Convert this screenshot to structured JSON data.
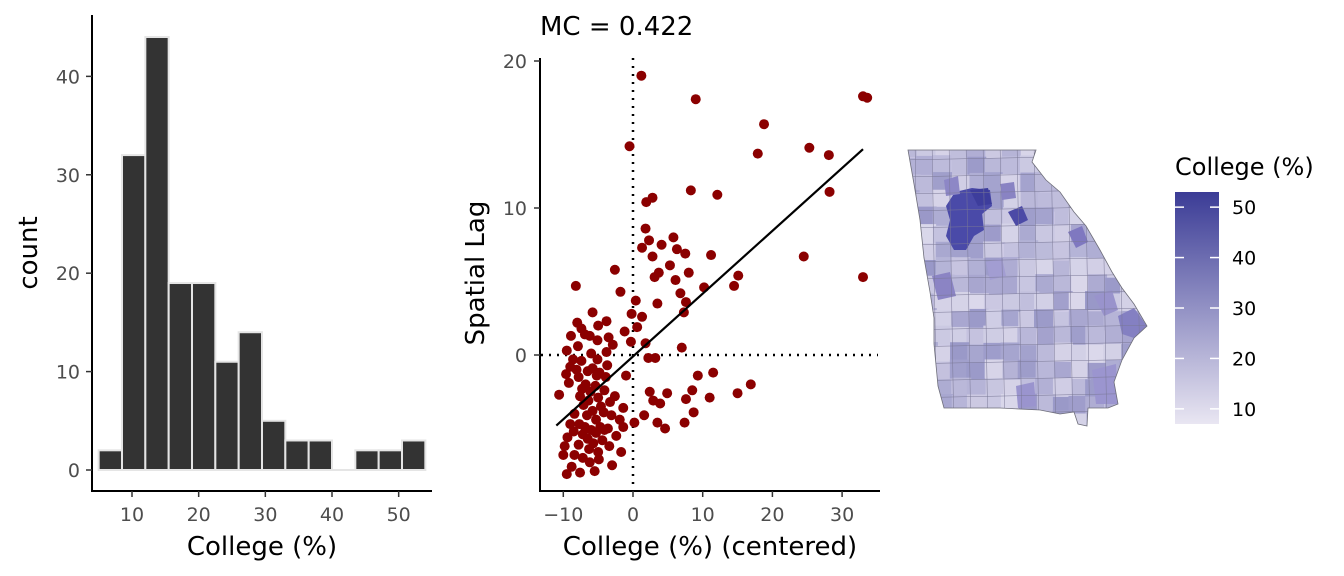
{
  "chart_data": [
    {
      "type": "bar",
      "subtype": "histogram",
      "title": "",
      "xlabel": "College (%)",
      "ylabel": "count",
      "xlim": [
        4,
        55
      ],
      "ylim": [
        0,
        46
      ],
      "x_ticks": [
        10,
        20,
        30,
        40,
        50
      ],
      "y_ticks": [
        0,
        10,
        20,
        30,
        40
      ],
      "bin_width": 3.5,
      "bins": [
        {
          "x0": 5.0,
          "x1": 8.5,
          "count": 2
        },
        {
          "x0": 8.5,
          "x1": 12.0,
          "count": 32
        },
        {
          "x0": 12.0,
          "x1": 15.5,
          "count": 44
        },
        {
          "x0": 15.5,
          "x1": 19.0,
          "count": 19
        },
        {
          "x0": 19.0,
          "x1": 22.5,
          "count": 19
        },
        {
          "x0": 22.5,
          "x1": 26.0,
          "count": 11
        },
        {
          "x0": 26.0,
          "x1": 29.5,
          "count": 14
        },
        {
          "x0": 29.5,
          "x1": 33.0,
          "count": 5
        },
        {
          "x0": 33.0,
          "x1": 36.5,
          "count": 3
        },
        {
          "x0": 36.5,
          "x1": 40.0,
          "count": 3
        },
        {
          "x0": 40.0,
          "x1": 43.5,
          "count": 0
        },
        {
          "x0": 43.5,
          "x1": 47.0,
          "count": 2
        },
        {
          "x0": 47.0,
          "x1": 50.5,
          "count": 2
        },
        {
          "x0": 50.5,
          "x1": 54.0,
          "count": 3
        }
      ],
      "bar_color": "#333333",
      "bar_edge_color": "#e5e5e5",
      "grid": false
    },
    {
      "type": "scatter",
      "title": "MC = 0.422",
      "xlabel": "College (%) (centered)",
      "ylabel": "Spatial Lag",
      "xlim": [
        -13.5,
        35.5
      ],
      "ylim": [
        -9.2,
        21
      ],
      "x_ticks": [
        -10,
        0,
        10,
        20,
        30
      ],
      "y_ticks": [
        0,
        10,
        20
      ],
      "point_color": "#8b0000",
      "reference_lines": {
        "x": 0,
        "y": 0,
        "style": "dotted"
      },
      "fit_line": {
        "x": [
          -11,
          33
        ],
        "y": [
          -4.8,
          14.0
        ]
      },
      "points": [
        [
          1.2,
          19.0
        ],
        [
          9.0,
          17.4
        ],
        [
          33.0,
          17.6
        ],
        [
          33.6,
          17.5
        ],
        [
          -0.5,
          14.2
        ],
        [
          18.8,
          15.7
        ],
        [
          25.3,
          14.1
        ],
        [
          28.1,
          13.6
        ],
        [
          17.9,
          13.7
        ],
        [
          8.3,
          11.2
        ],
        [
          12.1,
          10.9
        ],
        [
          28.2,
          11.1
        ],
        [
          2.8,
          10.7
        ],
        [
          1.9,
          10.4
        ],
        [
          1.8,
          8.6
        ],
        [
          2.3,
          7.8
        ],
        [
          5.8,
          8.0
        ],
        [
          4.1,
          7.5
        ],
        [
          7.5,
          6.9
        ],
        [
          1.3,
          7.3
        ],
        [
          6.3,
          7.2
        ],
        [
          11.2,
          6.8
        ],
        [
          2.8,
          6.7
        ],
        [
          5.3,
          6.1
        ],
        [
          24.5,
          6.7
        ],
        [
          8.0,
          5.6
        ],
        [
          15.1,
          5.4
        ],
        [
          3.7,
          5.6
        ],
        [
          3.1,
          5.3
        ],
        [
          6.1,
          5.1
        ],
        [
          -2.6,
          5.8
        ],
        [
          -8.2,
          4.7
        ],
        [
          14.5,
          4.7
        ],
        [
          10.2,
          4.6
        ],
        [
          -1.8,
          4.3
        ],
        [
          6.8,
          4.2
        ],
        [
          33.0,
          5.3
        ],
        [
          7.6,
          3.6
        ],
        [
          0.4,
          3.7
        ],
        [
          3.5,
          3.5
        ],
        [
          -5.8,
          2.9
        ],
        [
          7.3,
          2.9
        ],
        [
          -0.2,
          2.8
        ],
        [
          1.3,
          2.6
        ],
        [
          -3.8,
          2.3
        ],
        [
          -8.0,
          2.2
        ],
        [
          -5.0,
          2.0
        ],
        [
          0.6,
          1.9
        ],
        [
          -7.4,
          1.8
        ],
        [
          -1.2,
          1.6
        ],
        [
          -6.9,
          1.4
        ],
        [
          -8.9,
          1.3
        ],
        [
          -6.2,
          1.3
        ],
        [
          -3.5,
          1.2
        ],
        [
          -5.1,
          1.0
        ],
        [
          -0.3,
          0.9
        ],
        [
          1.8,
          0.8
        ],
        [
          -2.9,
          0.7
        ],
        [
          -7.9,
          0.6
        ],
        [
          -9.5,
          0.3
        ],
        [
          -3.8,
          0.2
        ],
        [
          7.0,
          0.5
        ],
        [
          -6.0,
          0.1
        ],
        [
          -8.6,
          -0.3
        ],
        [
          -5.1,
          -0.3
        ],
        [
          -7.4,
          -0.4
        ],
        [
          2.2,
          -0.2
        ],
        [
          3.2,
          -0.2
        ],
        [
          -9.0,
          -0.8
        ],
        [
          -3.7,
          -0.7
        ],
        [
          -5.8,
          -0.9
        ],
        [
          -8.1,
          -1.0
        ],
        [
          -6.5,
          -1.1
        ],
        [
          -4.8,
          -1.2
        ],
        [
          -9.6,
          -1.3
        ],
        [
          -5.2,
          -1.4
        ],
        [
          -3.9,
          -1.5
        ],
        [
          -1.0,
          -1.4
        ],
        [
          -7.8,
          -1.5
        ],
        [
          11.5,
          -1.2
        ],
        [
          9.3,
          -1.4
        ],
        [
          -9.2,
          -1.9
        ],
        [
          -6.8,
          -2.0
        ],
        [
          -5.4,
          -2.1
        ],
        [
          -7.3,
          -2.3
        ],
        [
          4.9,
          -2.6
        ],
        [
          16.9,
          -2.0
        ],
        [
          -4.1,
          -2.4
        ],
        [
          -10.6,
          -2.7
        ],
        [
          -6.1,
          -2.5
        ],
        [
          2.4,
          -2.5
        ],
        [
          8.5,
          -2.4
        ],
        [
          -7.6,
          -2.8
        ],
        [
          -5.0,
          -2.9
        ],
        [
          -2.6,
          -2.8
        ],
        [
          15.0,
          -2.6
        ],
        [
          -6.4,
          -3.1
        ],
        [
          7.6,
          -3.0
        ],
        [
          2.9,
          -3.1
        ],
        [
          -3.3,
          -3.2
        ],
        [
          3.9,
          -3.3
        ],
        [
          11.0,
          -2.9
        ],
        [
          -7.1,
          -3.4
        ],
        [
          -4.6,
          -3.5
        ],
        [
          -1.4,
          -3.6
        ],
        [
          -5.8,
          -3.8
        ],
        [
          -4.2,
          -3.9
        ],
        [
          8.7,
          -3.9
        ],
        [
          -8.4,
          -4.0
        ],
        [
          -6.6,
          -4.1
        ],
        [
          -3.1,
          -4.1
        ],
        [
          1.6,
          -4.1
        ],
        [
          -1.9,
          -4.4
        ],
        [
          0.2,
          -4.6
        ],
        [
          -5.3,
          -4.4
        ],
        [
          3.5,
          -4.6
        ],
        [
          7.4,
          -4.6
        ],
        [
          -7.7,
          -4.7
        ],
        [
          -9.0,
          -4.7
        ],
        [
          -4.7,
          -4.9
        ],
        [
          -6.9,
          -4.9
        ],
        [
          -3.6,
          -5.0
        ],
        [
          -1.4,
          -4.9
        ],
        [
          -6.0,
          -5.1
        ],
        [
          4.6,
          -5.0
        ],
        [
          -4.1,
          -5.1
        ],
        [
          -8.5,
          -5.2
        ],
        [
          -5.3,
          -5.3
        ],
        [
          -7.2,
          -5.4
        ],
        [
          -2.4,
          -5.5
        ],
        [
          -9.4,
          -5.6
        ],
        [
          -6.5,
          -5.7
        ],
        [
          -4.4,
          -5.8
        ],
        [
          -5.7,
          -6.0
        ],
        [
          -7.8,
          -6.1
        ],
        [
          -3.4,
          -6.2
        ],
        [
          -9.8,
          -6.2
        ],
        [
          -6.3,
          -6.4
        ],
        [
          -5.0,
          -6.6
        ],
        [
          -1.7,
          -6.6
        ],
        [
          -8.4,
          -6.8
        ],
        [
          -10.0,
          -6.8
        ],
        [
          -7.2,
          -7.0
        ],
        [
          -4.9,
          -7.1
        ],
        [
          -6.2,
          -7.3
        ],
        [
          -3.0,
          -7.5
        ],
        [
          -8.8,
          -7.6
        ],
        [
          -5.5,
          -7.9
        ],
        [
          -7.6,
          -8.0
        ],
        [
          -9.5,
          -8.1
        ]
      ]
    },
    {
      "type": "choropleth",
      "title": "",
      "legend_title": "College (%)",
      "legend_ticks": [
        10,
        20,
        30,
        40,
        50
      ],
      "legend_range": [
        7,
        53
      ],
      "color_low": "#e9e6f2",
      "color_high": "#3b3c96"
    }
  ]
}
